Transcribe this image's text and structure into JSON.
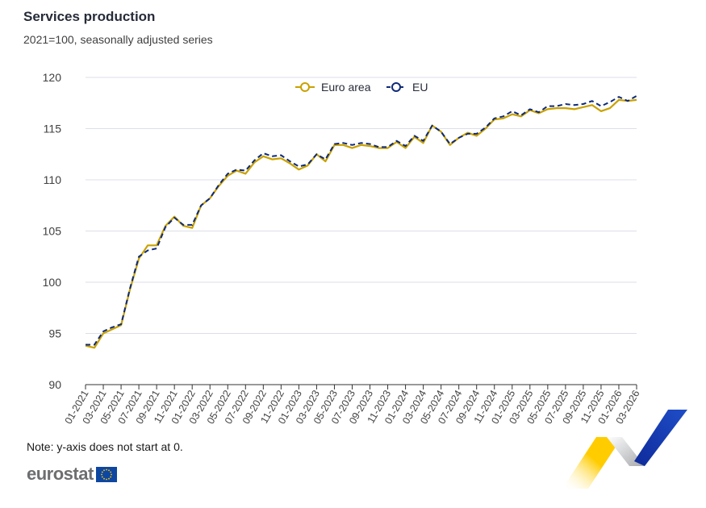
{
  "header": {
    "title": "Services production",
    "subtitle": "2021=100, seasonally adjusted series"
  },
  "footer": {
    "note": "Note: y-axis does not start at 0.",
    "logo_text": "eurostat"
  },
  "colors": {
    "euro_area": "#c9a100",
    "eu": "#0e2a78",
    "grid": "#dcdfe8",
    "deco_yellow": "#ffcc00",
    "deco_blue": "#1f4ec8",
    "deco_grey": "#a7a9ac"
  },
  "chart_data": {
    "type": "line",
    "title": "Services production",
    "subtitle": "2021=100, seasonally adjusted series",
    "xlabel": "",
    "ylabel": "",
    "ylim": [
      90,
      120
    ],
    "yticks": [
      90,
      95,
      100,
      105,
      110,
      115,
      120
    ],
    "grid": true,
    "legend": "top-center",
    "x_tick_labels": [
      "01-2021",
      "03-2021",
      "05-2021",
      "07-2021",
      "09-2021",
      "11-2021",
      "01-2022",
      "03-2022",
      "05-2022",
      "07-2022",
      "09-2022",
      "11-2022",
      "01-2023",
      "03-2023",
      "05-2023",
      "07-2023",
      "09-2023",
      "11-2023",
      "01-2024",
      "03-2024",
      "05-2024",
      "07-2024",
      "09-2024",
      "11-2024",
      "01-2025",
      "03-2025",
      "05-2025",
      "07-2025",
      "09-2025",
      "11-2025",
      "01-2026",
      "03-2026"
    ],
    "x": [
      "01-2021",
      "02-2021",
      "03-2021",
      "04-2021",
      "05-2021",
      "06-2021",
      "07-2021",
      "08-2021",
      "09-2021",
      "10-2021",
      "11-2021",
      "12-2021",
      "01-2022",
      "02-2022",
      "03-2022",
      "04-2022",
      "05-2022",
      "06-2022",
      "07-2022",
      "08-2022",
      "09-2022",
      "10-2022",
      "11-2022",
      "12-2022",
      "01-2023",
      "02-2023",
      "03-2023",
      "04-2023",
      "05-2023",
      "06-2023",
      "07-2023",
      "08-2023",
      "09-2023",
      "10-2023",
      "11-2023",
      "12-2023",
      "01-2024",
      "02-2024",
      "03-2024",
      "04-2024",
      "05-2024",
      "06-2024",
      "07-2024",
      "08-2024",
      "09-2024",
      "10-2024",
      "11-2024",
      "12-2024",
      "01-2025",
      "02-2025",
      "03-2025",
      "04-2025",
      "05-2025",
      "06-2025",
      "07-2025",
      "08-2025",
      "09-2025",
      "10-2025",
      "11-2025",
      "12-2025",
      "01-2026",
      "02-2026",
      "03-2026"
    ],
    "series": [
      {
        "name": "Euro area",
        "style": "solid",
        "values": [
          93.8,
          93.6,
          95.0,
          95.4,
          95.8,
          99.3,
          102.3,
          103.6,
          103.6,
          105.5,
          106.4,
          105.5,
          105.3,
          107.5,
          108.2,
          109.4,
          110.4,
          110.9,
          110.6,
          111.7,
          112.3,
          112.0,
          112.1,
          111.6,
          111.0,
          111.4,
          112.5,
          111.8,
          113.4,
          113.4,
          113.1,
          113.4,
          113.3,
          113.1,
          113.1,
          113.7,
          113.1,
          114.2,
          113.6,
          115.3,
          114.7,
          113.4,
          114.1,
          114.6,
          114.3,
          115.0,
          115.9,
          116.0,
          116.4,
          116.2,
          116.8,
          116.5,
          116.9,
          117.0,
          117.0,
          116.9,
          117.1,
          117.3,
          116.7,
          117.0,
          117.8,
          117.7,
          117.8
        ]
      },
      {
        "name": "EU",
        "style": "dashed",
        "values": [
          93.9,
          93.9,
          95.2,
          95.6,
          95.9,
          99.4,
          102.5,
          103.1,
          103.3,
          105.4,
          106.3,
          105.6,
          105.6,
          107.5,
          108.2,
          109.5,
          110.6,
          111.0,
          110.9,
          111.9,
          112.6,
          112.3,
          112.4,
          111.8,
          111.3,
          111.5,
          112.5,
          112.0,
          113.5,
          113.6,
          113.4,
          113.6,
          113.5,
          113.2,
          113.2,
          113.8,
          113.3,
          114.3,
          113.8,
          115.3,
          114.7,
          113.5,
          114.1,
          114.5,
          114.5,
          115.1,
          116.0,
          116.2,
          116.7,
          116.3,
          116.9,
          116.6,
          117.2,
          117.2,
          117.4,
          117.3,
          117.4,
          117.7,
          117.2,
          117.6,
          118.1,
          117.7,
          118.2
        ]
      }
    ]
  }
}
